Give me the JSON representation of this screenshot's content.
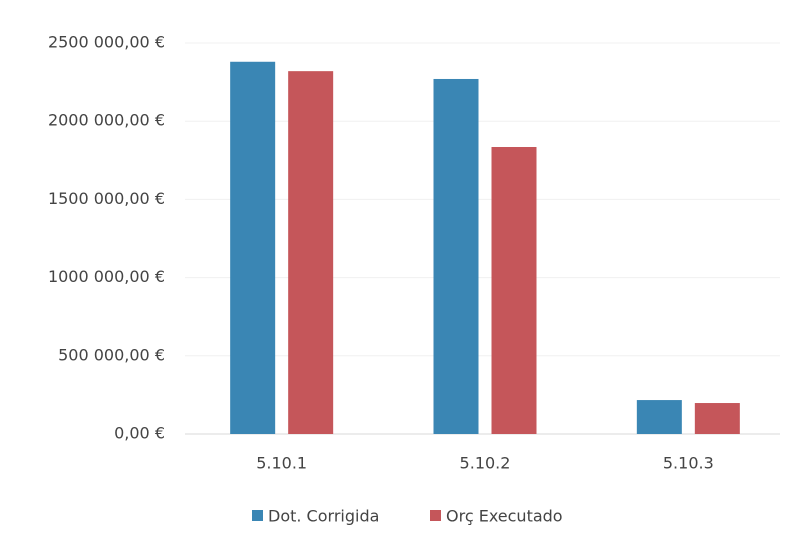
{
  "chart_data": {
    "type": "bar",
    "categories": [
      "5.10.1",
      "5.10.2",
      "5.10.3"
    ],
    "series": [
      {
        "name": "Dot. Corrigida",
        "color": "#3a86b4",
        "values": [
          2380000,
          2270000,
          217000
        ]
      },
      {
        "name": "Orç Executado",
        "color": "#c5565a",
        "values": [
          2320000,
          1835000,
          198000
        ]
      }
    ],
    "ylim": [
      0,
      2500000
    ],
    "yticks": [
      {
        "value": 0,
        "label": "0,00 €"
      },
      {
        "value": 500000,
        "label": "500 000,00 €"
      },
      {
        "value": 1000000,
        "label": "1000 000,00 €"
      },
      {
        "value": 1500000,
        "label": "1500 000,00 €"
      },
      {
        "value": 2000000,
        "label": "2000 000,00 €"
      },
      {
        "value": 2500000,
        "label": "2500 000,00 €"
      }
    ],
    "grid": true
  }
}
